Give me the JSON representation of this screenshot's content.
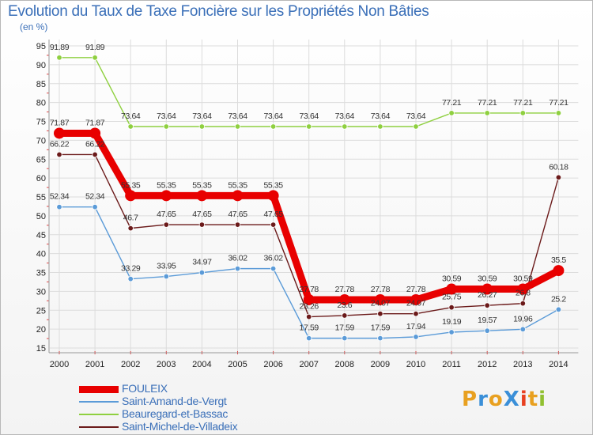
{
  "title": "Evolution du Taux de Taxe Foncière sur les Propriétés Non Bâties",
  "unit": "(en %)",
  "logo": {
    "text": "ProXiti",
    "colors": [
      "#e8a020",
      "#3a8fd8",
      "#e8a020",
      "#3a8fd8",
      "#e84020",
      "#e8a020",
      "#90c030"
    ]
  },
  "chart_data": {
    "type": "line",
    "title": "Evolution du Taux de Taxe Foncière sur les Propriétés Non Bâties",
    "ylabel": "(en %)",
    "xlabel": "",
    "ylim": [
      15,
      95
    ],
    "yticks": [
      15,
      20,
      25,
      30,
      35,
      40,
      45,
      50,
      55,
      60,
      65,
      70,
      75,
      80,
      85,
      90,
      95
    ],
    "x": [
      "2000",
      "2001",
      "2002",
      "2003",
      "2004",
      "2005",
      "2006",
      "2007",
      "2008",
      "2009",
      "2010",
      "2011",
      "2012",
      "2013",
      "2014"
    ],
    "series": [
      {
        "name": "FOULEIX",
        "color": "#e80000",
        "values": [
          71.87,
          71.87,
          55.35,
          55.35,
          55.35,
          55.35,
          55.35,
          27.78,
          27.78,
          27.78,
          27.78,
          30.59,
          30.59,
          30.59,
          35.5
        ]
      },
      {
        "name": "Saint-Amand-de-Vergt",
        "color": "#5b9bd8",
        "values": [
          52.34,
          52.34,
          33.29,
          33.95,
          34.97,
          36.02,
          36.02,
          17.59,
          17.59,
          17.59,
          17.94,
          19.19,
          19.57,
          19.96,
          25.2
        ]
      },
      {
        "name": "Beauregard-et-Bassac",
        "color": "#8fd040",
        "values": [
          91.89,
          91.89,
          73.64,
          73.64,
          73.64,
          73.64,
          73.64,
          73.64,
          73.64,
          73.64,
          73.64,
          77.21,
          77.21,
          77.21,
          77.21
        ]
      },
      {
        "name": "Saint-Michel-de-Villadeix",
        "color": "#6b1a1a",
        "values": [
          66.22,
          66.22,
          46.7,
          47.65,
          47.65,
          47.65,
          47.65,
          23.26,
          23.6,
          24.07,
          24.07,
          25.75,
          26.27,
          26.8,
          60.18
        ]
      }
    ],
    "labels": [
      [
        "71.87",
        "71.87",
        "55.35",
        "55.35",
        "55.35",
        "55.35",
        "55.35",
        "27.78",
        "27.78",
        "27.78",
        "27.78",
        "30.59",
        "30.59",
        "30.59",
        "35.5"
      ],
      [
        "52.34",
        "52.34",
        "33.29",
        "33.95",
        "34.97",
        "36.02",
        "36.02",
        "17.59",
        "17.59",
        "17.59",
        "17.94",
        "19.19",
        "19.57",
        "19.96",
        "25.2"
      ],
      [
        "91.89",
        "91.89",
        "73.64",
        "73.64",
        "73.64",
        "73.64",
        "73.64",
        "73.64",
        "73.64",
        "73.64",
        "73.64",
        "77.21",
        "77.21",
        "77.21",
        "77.21"
      ],
      [
        "66.22",
        "66.22",
        "46.7",
        "47.65",
        "47.65",
        "47.65",
        "47.65",
        "23.26",
        "23.6",
        "24.07",
        "24.07",
        "25.75",
        "26.27",
        "26.8",
        "60.18"
      ]
    ],
    "grid": true,
    "legend": "bottom-left"
  }
}
